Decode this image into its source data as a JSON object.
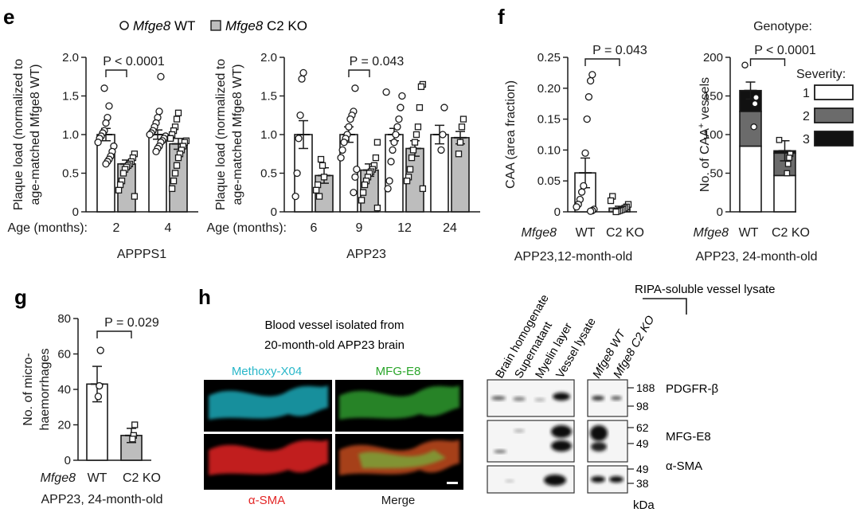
{
  "figure": {
    "panel_labels": {
      "e": "e",
      "f": "f",
      "g": "g",
      "h": "h"
    },
    "legend": {
      "wt_gene": "Mfge8",
      "wt_suffix": " WT",
      "ko_gene": "Mfge8",
      "ko_suffix": " C2 KO"
    },
    "colors": {
      "wt_fill": "#ffffff",
      "ko_fill": "#bdbdbd",
      "severity_2": "#6b6b6b",
      "severity_3": "#111111",
      "ink": "#1a1a1a"
    }
  },
  "chart_data": [
    {
      "id": "e-appps1",
      "type": "bar",
      "title": "APPPS1",
      "ylabel_lines": [
        "Plaque load (normalized to",
        "age-matched Mfge8 WT)"
      ],
      "xprefix": "Age (months):",
      "categories": [
        "2",
        "4"
      ],
      "ylim": [
        0,
        2.0
      ],
      "yticks": [
        "0",
        "0.5",
        "1.0",
        "1.5",
        "2.0"
      ],
      "series": [
        {
          "name": "Mfge8 WT",
          "values": [
            1.0,
            1.0
          ],
          "sem": [
            0.08,
            0.06
          ]
        },
        {
          "name": "Mfge8 C2 KO",
          "values": [
            0.62,
            0.88
          ],
          "sem": [
            0.05,
            0.07
          ]
        }
      ],
      "points": [
        [
          [
            1.37,
            1.22,
            1.15,
            1.05,
            1.02,
            0.98,
            0.95,
            0.9,
            0.85,
            0.78,
            0.72,
            0.68,
            0.65,
            0.62,
            1.6
          ],
          [
            0.75,
            0.7,
            0.65,
            0.62,
            0.6,
            0.58,
            0.55,
            0.5,
            0.4,
            0.35,
            0.28,
            0.2
          ]
        ],
        [
          [
            1.75,
            1.3,
            1.22,
            1.15,
            1.1,
            1.05,
            1.02,
            1.0,
            0.98,
            0.95,
            0.92,
            0.9,
            0.85,
            0.82,
            0.78
          ],
          [
            1.28,
            1.2,
            1.1,
            1.05,
            1.0,
            0.95,
            0.92,
            0.9,
            0.85,
            0.8,
            0.75,
            0.7,
            0.6,
            0.5,
            0.4,
            0.3,
            0.95
          ]
        ]
      ],
      "significance": [
        {
          "from": 0,
          "to": 1,
          "group": 0,
          "text": "P < 0.0001"
        }
      ]
    },
    {
      "id": "e-app23",
      "type": "bar",
      "title": "APP23",
      "ylabel_lines": [
        "Plaque load (normalized to",
        "age-matched Mfge8 WT)"
      ],
      "xprefix": "Age (months):",
      "categories": [
        "6",
        "9",
        "12",
        "24"
      ],
      "ylim": [
        0,
        2.0
      ],
      "yticks": [
        "0",
        "0.5",
        "1.0",
        "1.5",
        "2.0"
      ],
      "series": [
        {
          "name": "Mfge8 WT",
          "values": [
            1.0,
            1.0,
            1.0,
            1.0
          ],
          "sem": [
            0.18,
            0.1,
            0.08,
            0.12
          ]
        },
        {
          "name": "Mfge8 C2 KO",
          "values": [
            0.47,
            0.54,
            0.82,
            0.96
          ],
          "sem": [
            0.1,
            0.08,
            0.1,
            0.08
          ]
        }
      ],
      "points": [
        [
          [
            1.8,
            1.72,
            1.25,
            0.95,
            0.5,
            0.2
          ],
          [
            0.45,
            0.6,
            0.68,
            0.2,
            0.35,
            0.28
          ]
        ],
        [
          [
            1.6,
            1.3,
            1.25,
            1.2,
            1.1,
            1.0,
            0.95,
            0.9,
            0.8,
            0.7,
            0.55,
            0.45,
            0.25
          ],
          [
            0.9,
            0.7,
            0.6,
            0.55,
            0.52,
            0.5,
            0.45,
            0.4,
            0.35,
            0.25,
            0.15,
            0.05
          ]
        ],
        [
          [
            1.55,
            1.5,
            1.35,
            1.2,
            1.1,
            1.0,
            0.9,
            0.8,
            0.65,
            0.4,
            0.3
          ],
          [
            1.65,
            1.62,
            1.35,
            1.1,
            1.0,
            0.9,
            0.8,
            0.7,
            0.55,
            0.45,
            0.4,
            0.3
          ]
        ],
        [
          [
            1.35,
            1.0,
            0.8
          ],
          [
            1.2,
            1.1,
            0.9,
            0.75
          ]
        ]
      ],
      "significance": [
        {
          "from": 0,
          "to": 1,
          "group": 1,
          "text": "P = 0.043"
        }
      ]
    },
    {
      "id": "f-caa",
      "type": "bar",
      "ylabel_lines": [
        "CAA (area fraction)"
      ],
      "gene_label": "Mfge8",
      "categories": [
        "WT",
        "C2 KO"
      ],
      "ylim": [
        0,
        0.25
      ],
      "yticks": [
        "0",
        "0.05",
        "0.10",
        "0.15",
        "0.20",
        "0.25"
      ],
      "subtitle": "APP23,12-month-old",
      "series": [
        {
          "name": "CAA",
          "values": [
            0.063,
            0.006
          ],
          "sem": [
            0.024,
            0.003
          ]
        }
      ],
      "points": [
        [
          0.222,
          0.212,
          0.186,
          0.15,
          0.095,
          0.042,
          0.032,
          0.02,
          0.012,
          0.008,
          0.004,
          0.002,
          0.001
        ],
        [
          0.025,
          0.018,
          0.012,
          0.008,
          0.006,
          0.004,
          0.003,
          0.002,
          0.001,
          0.0
        ]
      ],
      "significance": [
        {
          "text": "P = 0.043"
        }
      ]
    },
    {
      "id": "f-vessels",
      "type": "stacked-bar",
      "ylabel": "No. of CAA",
      "ylabel_sup": "+",
      "ylabel_tail": " vessels",
      "gene_label": "Mfge8",
      "categories": [
        "WT",
        "C2 KO"
      ],
      "ylim": [
        0,
        200
      ],
      "yticks": [
        "0",
        "50",
        "100",
        "150",
        "200"
      ],
      "subtitle": "APP23, 24-month-old",
      "series": [
        {
          "name": "1",
          "values": [
            85,
            47
          ]
        },
        {
          "name": "2",
          "values": [
            45,
            29
          ]
        },
        {
          "name": "3",
          "values": [
            27,
            3
          ]
        }
      ],
      "totals_sem": [
        11,
        13
      ],
      "points": [
        [
          190,
          148,
          140,
          110
        ],
        [
          93,
          75,
          70,
          62,
          50
        ]
      ],
      "legend_title_genotype": "Genotype:",
      "legend_title_severity": "Severity:",
      "significance": [
        {
          "text": "P < 0.0001"
        }
      ]
    },
    {
      "id": "g-micro",
      "type": "bar",
      "ylabel_lines": [
        "No. of micro-",
        "haemorrhages"
      ],
      "gene_label": "Mfge8",
      "categories": [
        "WT",
        "C2 KO"
      ],
      "ylim": [
        0,
        80
      ],
      "yticks": [
        "0",
        "20",
        "40",
        "60",
        "80"
      ],
      "subtitle": "APP23, 24-month-old",
      "series": [
        {
          "name": "Microhaemorrhages",
          "values": [
            43,
            14
          ],
          "sem": [
            10,
            4
          ]
        }
      ],
      "points": [
        [
          62,
          42,
          36
        ],
        [
          20,
          14,
          12
        ]
      ],
      "significance": [
        {
          "text": "P = 0.029"
        }
      ]
    }
  ],
  "panel_h": {
    "title_lines": [
      "Blood vessel isolated from",
      "20-month-old APP23 brain"
    ],
    "micrographs": [
      {
        "label": "Methoxy-X04",
        "color": "#29b7c9"
      },
      {
        "label": "MFG-E8",
        "color": "#2aa52a"
      },
      {
        "label": "α-SMA",
        "color": "#e32626"
      },
      {
        "label": "Merge",
        "color": "#1a1a1a"
      }
    ],
    "blot_lanes_left": [
      "Brain homogenate",
      "Supernatant",
      "Myelin layer",
      "Vessel lysate"
    ],
    "blot_lanes_right": [
      "Mfge8 WT",
      "Mfge8 C2 KO"
    ],
    "ripa_label": "RIPA-soluble vessel lysate",
    "markers": [
      {
        "name": "PDGFR-β",
        "kda_top": "188",
        "kda_bottom": "98"
      },
      {
        "name": "MFG-E8",
        "kda_top": "62",
        "kda_bottom": "49"
      },
      {
        "name": "α-SMA",
        "kda_top": "49",
        "kda_bottom": "38"
      }
    ],
    "unit": "kDa"
  }
}
